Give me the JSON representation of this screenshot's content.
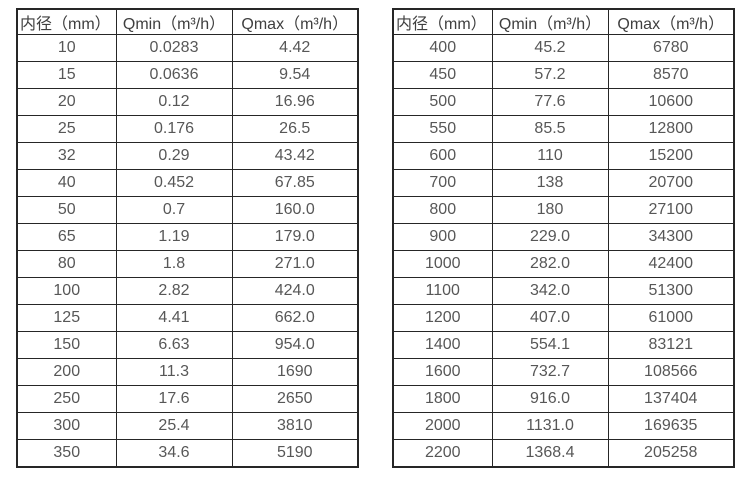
{
  "colors": {
    "background": "#ffffff",
    "table_border": "#262626",
    "header_text": "#3f3f3f",
    "cell_text": "#575757"
  },
  "tables": [
    {
      "name": "flow-rate-table-small-diameters",
      "headers": [
        "内径（mm）",
        "Qmin（m³/h）",
        "Qmax（m³/h）"
      ],
      "rows": [
        [
          "10",
          "0.0283",
          "4.42"
        ],
        [
          "15",
          "0.0636",
          "9.54"
        ],
        [
          "20",
          "0.12",
          "16.96"
        ],
        [
          "25",
          "0.176",
          "26.5"
        ],
        [
          "32",
          "0.29",
          "43.42"
        ],
        [
          "40",
          "0.452",
          "67.85"
        ],
        [
          "50",
          "0.7",
          "160.0"
        ],
        [
          "65",
          "1.19",
          "179.0"
        ],
        [
          "80",
          "1.8",
          "271.0"
        ],
        [
          "100",
          "2.82",
          "424.0"
        ],
        [
          "125",
          "4.41",
          "662.0"
        ],
        [
          "150",
          "6.63",
          "954.0"
        ],
        [
          "200",
          "11.3",
          "1690"
        ],
        [
          "250",
          "17.6",
          "2650"
        ],
        [
          "300",
          "25.4",
          "3810"
        ],
        [
          "350",
          "34.6",
          "5190"
        ]
      ]
    },
    {
      "name": "flow-rate-table-large-diameters",
      "headers": [
        "内径（mm）",
        "Qmin（m³/h）",
        "Qmax（m³/h）"
      ],
      "rows": [
        [
          "400",
          "45.2",
          "6780"
        ],
        [
          "450",
          "57.2",
          "8570"
        ],
        [
          "500",
          "77.6",
          "10600"
        ],
        [
          "550",
          "85.5",
          "12800"
        ],
        [
          "600",
          "110",
          "15200"
        ],
        [
          "700",
          "138",
          "20700"
        ],
        [
          "800",
          "180",
          "27100"
        ],
        [
          "900",
          "229.0",
          "34300"
        ],
        [
          "1000",
          "282.0",
          "42400"
        ],
        [
          "1100",
          "342.0",
          "51300"
        ],
        [
          "1200",
          "407.0",
          "61000"
        ],
        [
          "1400",
          "554.1",
          "83121"
        ],
        [
          "1600",
          "732.7",
          "108566"
        ],
        [
          "1800",
          "916.0",
          "137404"
        ],
        [
          "2000",
          "1131.0",
          "169635"
        ],
        [
          "2200",
          "1368.4",
          "205258"
        ]
      ]
    }
  ]
}
